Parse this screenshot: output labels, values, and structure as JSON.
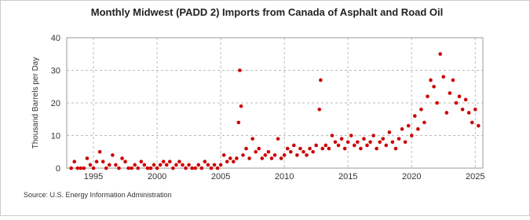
{
  "chart_data": {
    "type": "scatter",
    "title": "Monthly Midwest (PADD 2) Imports from Canada of Asphalt and Road Oil",
    "y_label": "Thousand Barrels per Day",
    "source": "Source: U.S. Energy Information Administration",
    "color": "#cc0000",
    "grid": true,
    "xlim": [
      1992.9,
      2025.6
    ],
    "ylim": [
      0,
      40
    ],
    "xticks": [
      1995,
      2000,
      2005,
      2010,
      2015,
      2020,
      2025
    ],
    "yticks": [
      0,
      10,
      20,
      30,
      40
    ],
    "x": [
      1993.25,
      1993.5,
      1993.75,
      1994.0,
      1994.25,
      1994.5,
      1994.75,
      1995.0,
      1995.25,
      1995.5,
      1995.75,
      1996.0,
      1996.25,
      1996.5,
      1996.75,
      1997.0,
      1997.25,
      1997.5,
      1997.75,
      1998.0,
      1998.25,
      1998.5,
      1998.75,
      1999.0,
      1999.25,
      1999.5,
      1999.75,
      2000.0,
      2000.25,
      2000.5,
      2000.75,
      2001.0,
      2001.25,
      2001.5,
      2001.75,
      2002.0,
      2002.25,
      2002.5,
      2002.75,
      2003.0,
      2003.25,
      2003.5,
      2003.75,
      2004.0,
      2004.25,
      2004.5,
      2004.75,
      2005.0,
      2005.25,
      2005.5,
      2005.75,
      2006.0,
      2006.25,
      2006.4,
      2006.5,
      2006.6,
      2006.75,
      2007.0,
      2007.25,
      2007.5,
      2007.75,
      2008.0,
      2008.25,
      2008.5,
      2008.75,
      2009.0,
      2009.25,
      2009.5,
      2009.75,
      2010.0,
      2010.25,
      2010.5,
      2010.75,
      2011.0,
      2011.25,
      2011.5,
      2011.75,
      2012.0,
      2012.25,
      2012.5,
      2012.75,
      2012.85,
      2013.0,
      2013.25,
      2013.5,
      2013.75,
      2014.0,
      2014.25,
      2014.5,
      2014.75,
      2015.0,
      2015.25,
      2015.5,
      2015.75,
      2016.0,
      2016.25,
      2016.5,
      2016.75,
      2017.0,
      2017.25,
      2017.5,
      2017.75,
      2018.0,
      2018.25,
      2018.5,
      2018.75,
      2019.0,
      2019.25,
      2019.5,
      2019.75,
      2020.0,
      2020.25,
      2020.5,
      2020.75,
      2021.0,
      2021.25,
      2021.5,
      2021.75,
      2022.0,
      2022.25,
      2022.5,
      2022.75,
      2023.0,
      2023.25,
      2023.5,
      2023.75,
      2024.0,
      2024.25,
      2024.5,
      2024.75,
      2025.0,
      2025.25
    ],
    "values": [
      0,
      2,
      0,
      0,
      0,
      3,
      1,
      0,
      2,
      5,
      2,
      0,
      1,
      4,
      1,
      0,
      3,
      2,
      0,
      0,
      1,
      0,
      2,
      1,
      0,
      0,
      1,
      0,
      1,
      2,
      1,
      2,
      0,
      1,
      2,
      1,
      0,
      1,
      0,
      0,
      1,
      0,
      2,
      1,
      0,
      1,
      0,
      1,
      4,
      2,
      3,
      2,
      3,
      14,
      30,
      19,
      4,
      6,
      3,
      9,
      5,
      6,
      3,
      4,
      5,
      3,
      4,
      9,
      3,
      4,
      6,
      5,
      7,
      4,
      6,
      5,
      4,
      6,
      5,
      7,
      18,
      27,
      6,
      7,
      6,
      10,
      8,
      7,
      9,
      6,
      8,
      10,
      7,
      8,
      6,
      9,
      7,
      8,
      10,
      6,
      8,
      9,
      7,
      11,
      8,
      6,
      9,
      12,
      8,
      13,
      10,
      16,
      12,
      18,
      14,
      22,
      27,
      25,
      20,
      35,
      28,
      17,
      23,
      27,
      20,
      22,
      18,
      21,
      17,
      14,
      18,
      13
    ]
  }
}
